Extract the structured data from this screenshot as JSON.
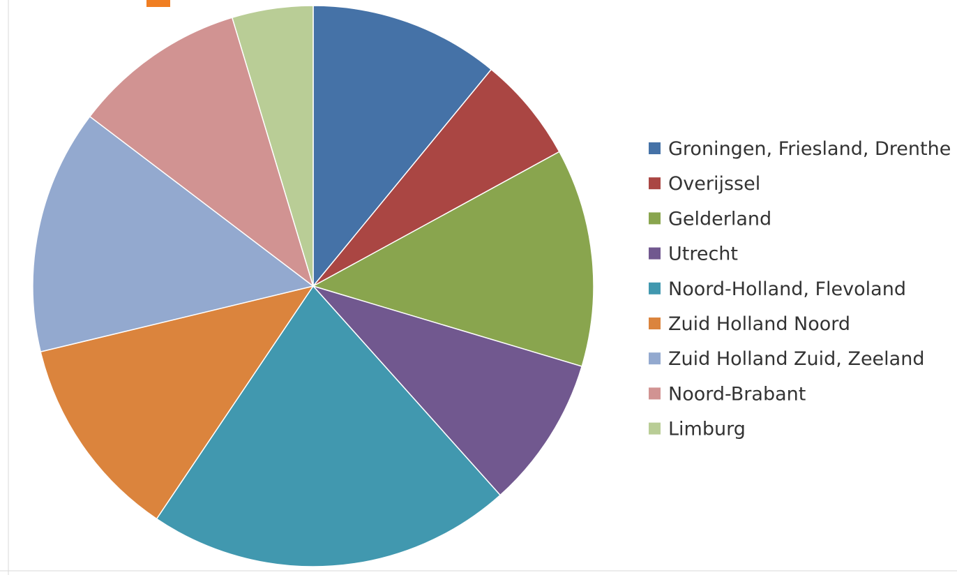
{
  "chart_data": {
    "type": "pie",
    "start_angle_deg": 0,
    "direction": "clockwise",
    "legend_position": "right",
    "slices": [
      {
        "label": "Groningen, Friesland, Drenthe",
        "value": 11.5,
        "color": "#4572A7"
      },
      {
        "label": "Overijssel",
        "value": 6.4,
        "color": "#AA4643"
      },
      {
        "label": "Gelderland",
        "value": 13.2,
        "color": "#89A54E"
      },
      {
        "label": "Utrecht",
        "value": 9.2,
        "color": "#71588F"
      },
      {
        "label": "Noord-Holland, Flevoland",
        "value": 22.1,
        "color": "#4198AF"
      },
      {
        "label": "Zuid Holland Noord",
        "value": 12.4,
        "color": "#DB843D"
      },
      {
        "label": "Zuid Holland Zuid, Zeeland",
        "value": 14.8,
        "color": "#93A9CF"
      },
      {
        "label": "Noord-Brabant",
        "value": 10.5,
        "color": "#D19392"
      },
      {
        "label": "Limburg",
        "value": 4.9,
        "color": "#B9CD96"
      }
    ]
  }
}
